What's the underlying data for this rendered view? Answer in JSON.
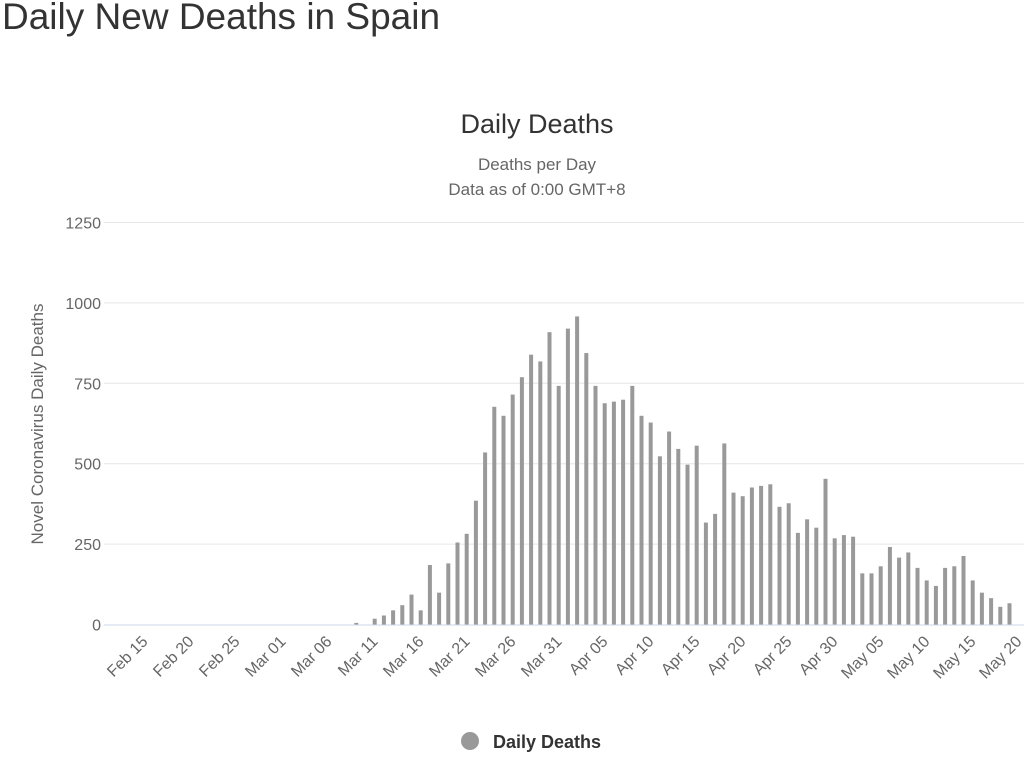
{
  "page": {
    "title": "Daily New Deaths in Spain"
  },
  "chart_data": {
    "type": "bar",
    "title": "Daily Deaths",
    "subtitle": [
      "Deaths per Day",
      "Data as of 0:00 GMT+8"
    ],
    "ylabel": "Novel Coronavirus Daily Deaths",
    "xlabel": "",
    "ylim": [
      0,
      1250
    ],
    "yticks": [
      0,
      250,
      500,
      750,
      1000,
      1250
    ],
    "xticks": [
      "Feb 15",
      "Feb 20",
      "Feb 25",
      "Mar 01",
      "Mar 06",
      "Mar 11",
      "Mar 16",
      "Mar 21",
      "Mar 26",
      "Mar 31",
      "Apr 05",
      "Apr 10",
      "Apr 15",
      "Apr 20",
      "Apr 25",
      "Apr 30",
      "May 05",
      "May 10",
      "May 15",
      "May 20"
    ],
    "grid": true,
    "legend_position": "bottom",
    "series": [
      {
        "name": "Daily Deaths",
        "color": "#999999"
      }
    ],
    "first_date": "Feb 15",
    "dates": [
      "Mar 09",
      "Mar 10",
      "Mar 11",
      "Mar 12",
      "Mar 13",
      "Mar 14",
      "Mar 15",
      "Mar 16",
      "Mar 17",
      "Mar 18",
      "Mar 19",
      "Mar 20",
      "Mar 21",
      "Mar 22",
      "Mar 23",
      "Mar 24",
      "Mar 25",
      "Mar 26",
      "Mar 27",
      "Mar 28",
      "Mar 29",
      "Mar 30",
      "Mar 31",
      "Apr 01",
      "Apr 02",
      "Apr 03",
      "Apr 04",
      "Apr 05",
      "Apr 06",
      "Apr 07",
      "Apr 08",
      "Apr 09",
      "Apr 10",
      "Apr 11",
      "Apr 12",
      "Apr 13",
      "Apr 14",
      "Apr 15",
      "Apr 16",
      "Apr 17",
      "Apr 18",
      "Apr 19",
      "Apr 20",
      "Apr 21",
      "Apr 22",
      "Apr 23",
      "Apr 24",
      "Apr 25",
      "Apr 26",
      "Apr 27",
      "Apr 28",
      "Apr 29",
      "Apr 30",
      "May 01",
      "May 02",
      "May 03",
      "May 04",
      "May 05",
      "May 06",
      "May 07",
      "May 08",
      "May 09",
      "May 10",
      "May 11",
      "May 12",
      "May 13",
      "May 14",
      "May 15",
      "May 16",
      "May 17",
      "May 18",
      "May 19"
    ],
    "values": [
      5,
      0,
      18,
      28,
      44,
      60,
      93,
      44,
      185,
      99,
      190,
      255,
      282,
      385,
      535,
      677,
      649,
      715,
      769,
      839,
      818,
      909,
      742,
      920,
      958,
      844,
      742,
      688,
      693,
      699,
      742,
      649,
      628,
      523,
      600,
      546,
      497,
      556,
      317,
      344,
      563,
      410,
      399,
      426,
      431,
      436,
      366,
      377,
      285,
      327,
      301,
      453,
      268,
      278,
      273,
      159,
      159,
      181,
      241,
      208,
      224,
      176,
      137,
      120,
      176,
      181,
      213,
      137,
      99,
      82,
      55,
      66
    ]
  },
  "colors": {
    "bar": "#999999",
    "grid": "#e6e6e6",
    "axis": "#ccd6eb"
  }
}
